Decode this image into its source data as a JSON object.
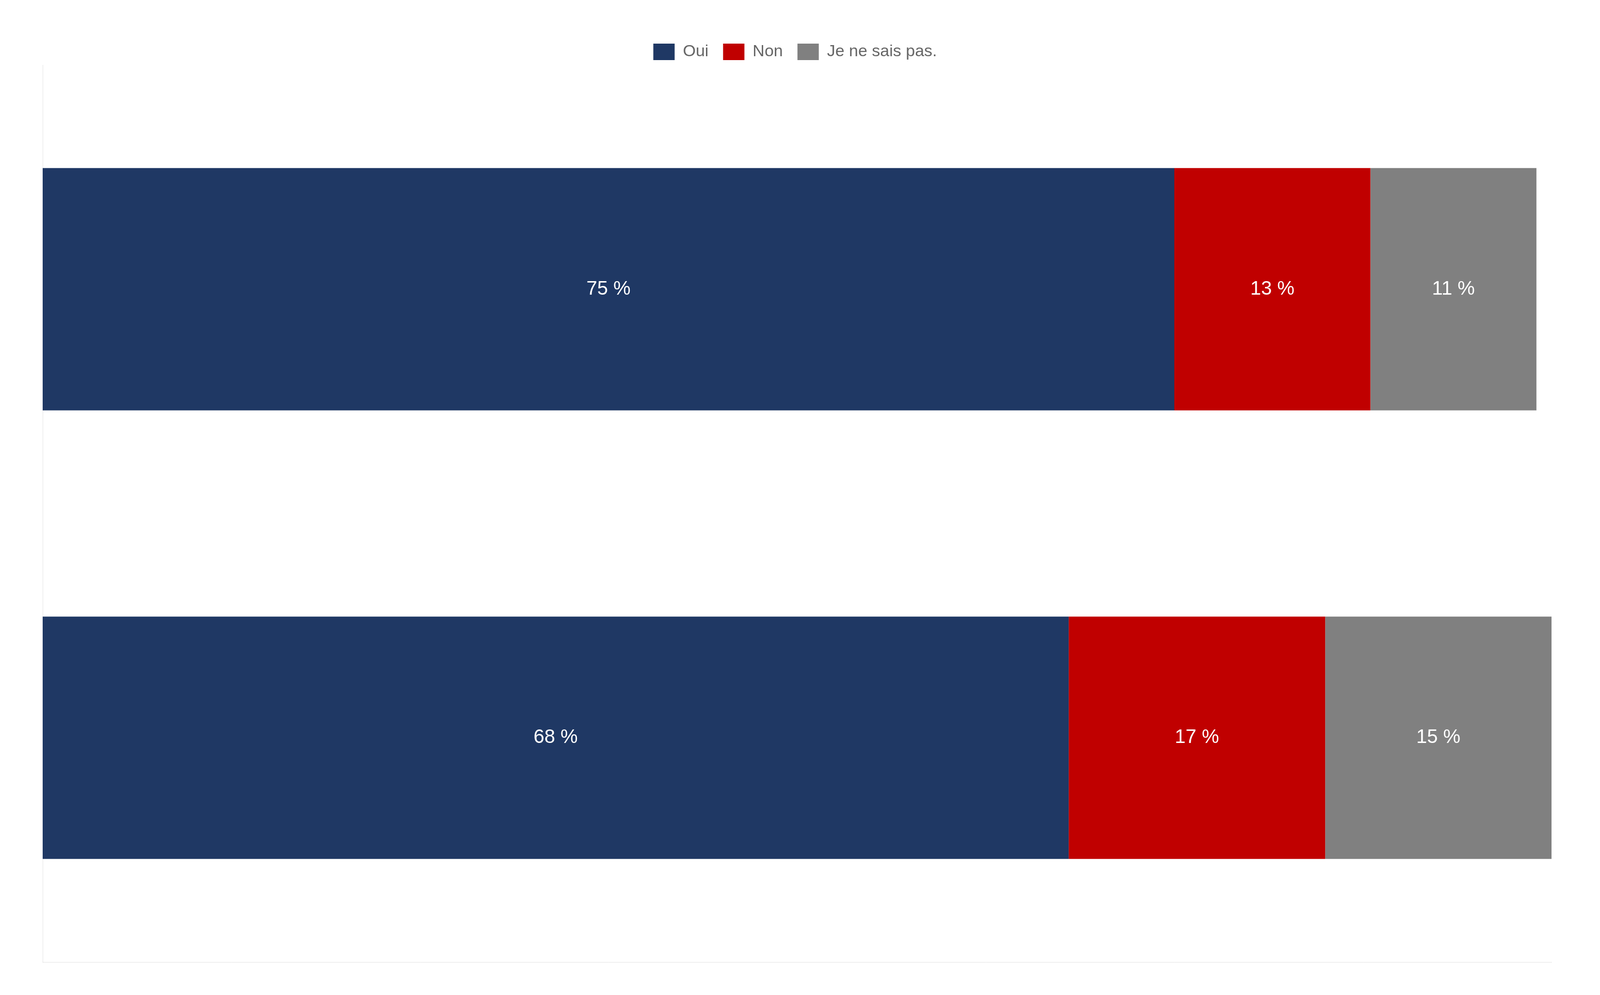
{
  "chart_data": {
    "type": "bar",
    "orientation": "horizontal",
    "stacked": true,
    "categories": [
      null,
      null
    ],
    "series": [
      {
        "name": "Oui",
        "color": "#1F3864",
        "values": [
          75,
          68
        ],
        "value_labels": [
          "75 %",
          "68 %"
        ]
      },
      {
        "name": "Non",
        "color": "#C00000",
        "values": [
          13,
          17
        ],
        "value_labels": [
          "13 %",
          "17 %"
        ]
      },
      {
        "name": "Je ne sais pas.",
        "color": "#808080",
        "values": [
          11,
          15
        ],
        "value_labels": [
          "11 %",
          "15 %"
        ]
      }
    ],
    "xlim": [
      0,
      100
    ],
    "data_labels": true,
    "legend": "top",
    "grid": false,
    "tick_labels": false
  }
}
